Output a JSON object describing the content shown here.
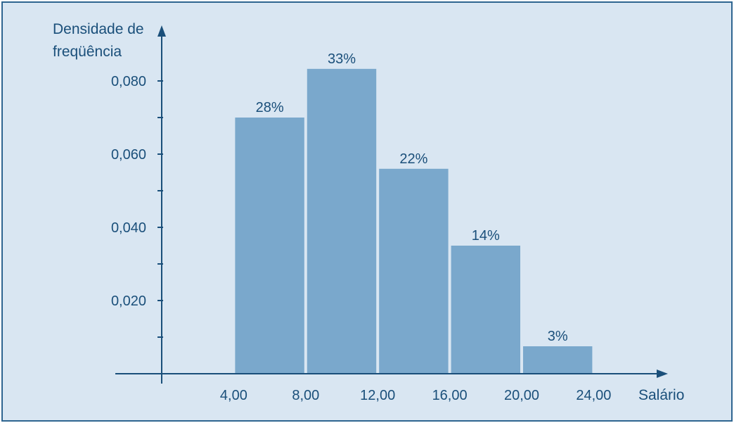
{
  "chart_data": {
    "type": "bar",
    "histogram": true,
    "ylabel_lines": [
      "Densidade de",
      "freqüência"
    ],
    "xlabel": "Salário",
    "bins": [
      {
        "start": 4,
        "end": 8,
        "density": 0.07,
        "label": "28%"
      },
      {
        "start": 8,
        "end": 12,
        "density": 0.0833,
        "label": "33%"
      },
      {
        "start": 12,
        "end": 16,
        "density": 0.056,
        "label": "22%"
      },
      {
        "start": 16,
        "end": 20,
        "density": 0.035,
        "label": "14%"
      },
      {
        "start": 20,
        "end": 24,
        "density": 0.0075,
        "label": "3%"
      }
    ],
    "x_ticks": [
      "4,00",
      "8,00",
      "12,00",
      "16,00",
      "20,00",
      "24,00"
    ],
    "y_ticks": [
      "0,020",
      "0,040",
      "0,060",
      "0,080"
    ],
    "xlim": [
      0,
      28
    ],
    "ylim": [
      0,
      0.09
    ],
    "grid": false,
    "colors": {
      "bar": "#7aa8cc",
      "axis": "#1a4f7a",
      "text": "#1a4f7a",
      "background": "#d9e6f2",
      "border": "#2e6590"
    }
  }
}
